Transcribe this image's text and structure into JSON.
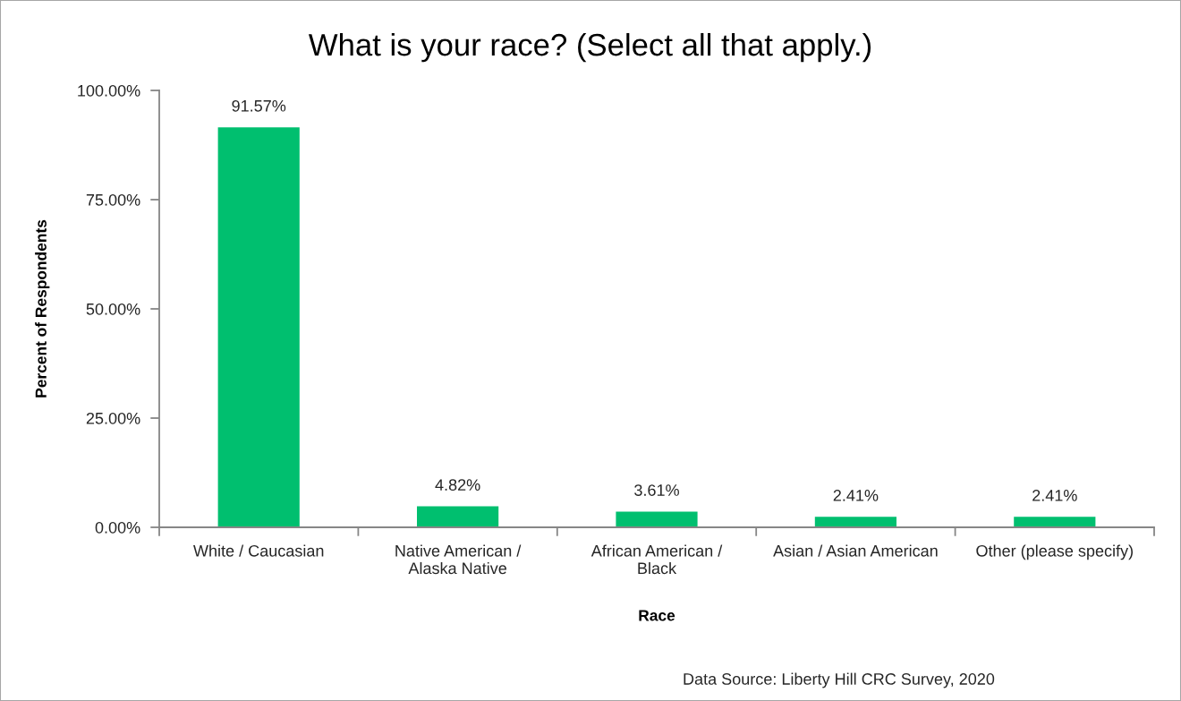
{
  "chart_data": {
    "type": "bar",
    "title": "What is your race? (Select all that apply.)",
    "xlabel": "Race",
    "ylabel": "Percent of Respondents",
    "categories": [
      "White / Caucasian",
      "Native American /\nAlaska Native",
      "African American /\nBlack",
      "Asian / Asian American",
      "Other (please specify)"
    ],
    "values": [
      91.57,
      4.82,
      3.61,
      2.41,
      2.41
    ],
    "value_labels": [
      "91.57%",
      "4.82%",
      "3.61%",
      "2.41%",
      "2.41%"
    ],
    "color": "#00bf6f",
    "ylim": [
      0,
      100
    ],
    "yticks": [
      {
        "value": 0,
        "label": "0.00%"
      },
      {
        "value": 25,
        "label": "25.00%"
      },
      {
        "value": 50,
        "label": "50.00%"
      },
      {
        "value": 75,
        "label": "75.00%"
      },
      {
        "value": 100,
        "label": "100.00%"
      }
    ],
    "grid": false,
    "legend": false,
    "annotations": [
      "Data Source: Liberty Hill CRC Survey, 2020"
    ]
  }
}
